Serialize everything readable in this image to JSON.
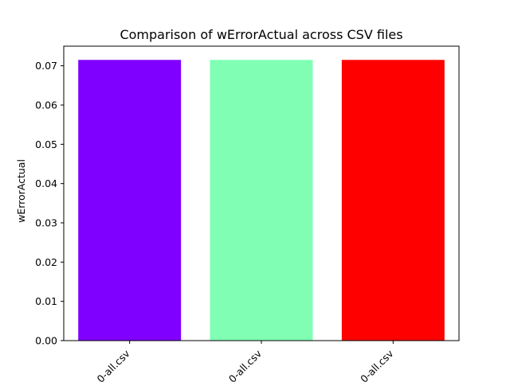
{
  "chart_data": {
    "type": "bar",
    "title": "Comparison of  wErrorActual across CSV files",
    "xlabel": "",
    "ylabel": "wErrorActual",
    "categories": [
      "0-all.csv",
      "0-all.csv",
      "0-all.csv"
    ],
    "values": [
      0.0715,
      0.0715,
      0.0715
    ],
    "colors": [
      "#8000ff",
      "#80ffb4",
      "#ff0000"
    ],
    "ylim": [
      0,
      0.075
    ],
    "yticks": [
      0.0,
      0.01,
      0.02,
      0.03,
      0.04,
      0.05,
      0.06,
      0.07
    ],
    "grid": false,
    "legend": "none"
  }
}
